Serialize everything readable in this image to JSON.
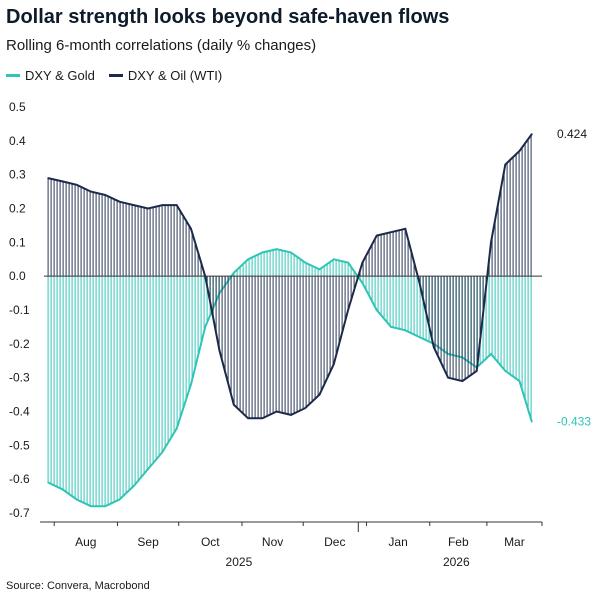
{
  "title": "Dollar strength looks beyond safe-haven flows",
  "subtitle": "Rolling 6-month correlations (daily % changes)",
  "source": "Source: Convera, Macrobond",
  "colors": {
    "gold": "#2ec4b6",
    "oil": "#1b2a49",
    "axis": "#333333"
  },
  "chart_data": {
    "type": "area",
    "title": "Dollar strength looks beyond safe-haven flows",
    "subtitle": "Rolling 6-month correlations (daily % changes)",
    "ylim": [
      -0.7,
      0.5
    ],
    "yticks": [
      "0.5",
      "0.4",
      "0.3",
      "0.2",
      "0.1",
      "0.0",
      "-0.1",
      "-0.2",
      "-0.3",
      "-0.4",
      "-0.5",
      "-0.6",
      "-0.7"
    ],
    "ytick_values": [
      0.5,
      0.4,
      0.3,
      0.2,
      0.1,
      0.0,
      -0.1,
      -0.2,
      -0.3,
      -0.4,
      -0.5,
      -0.6,
      -0.7
    ],
    "x_months": [
      "Aug",
      "Sep",
      "Oct",
      "Nov",
      "Dec",
      "Jan",
      "Feb",
      "Mar"
    ],
    "x_years": [
      "2025",
      "2026"
    ],
    "legend_position": "top-left",
    "grid": false,
    "series": [
      {
        "name": "DXY & Gold",
        "color": "#2ec4b6",
        "end_label": "-0.433",
        "x": [
          "2025-07-29",
          "2025-08-05",
          "2025-08-12",
          "2025-08-19",
          "2025-08-26",
          "2025-09-02",
          "2025-09-09",
          "2025-09-16",
          "2025-09-23",
          "2025-09-30",
          "2025-10-07",
          "2025-10-14",
          "2025-10-21",
          "2025-10-28",
          "2025-11-04",
          "2025-11-11",
          "2025-11-18",
          "2025-11-25",
          "2025-12-02",
          "2025-12-09",
          "2025-12-16",
          "2025-12-23",
          "2025-12-30",
          "2026-01-06",
          "2026-01-13",
          "2026-01-20",
          "2026-01-27",
          "2026-02-03",
          "2026-02-10",
          "2026-02-17",
          "2026-02-24",
          "2026-03-03",
          "2026-03-10",
          "2026-03-17",
          "2026-03-23"
        ],
        "values": [
          -0.61,
          -0.63,
          -0.66,
          -0.68,
          -0.68,
          -0.66,
          -0.62,
          -0.57,
          -0.52,
          -0.45,
          -0.32,
          -0.15,
          -0.05,
          0.01,
          0.05,
          0.07,
          0.08,
          0.07,
          0.04,
          0.02,
          0.05,
          0.04,
          -0.02,
          -0.1,
          -0.15,
          -0.16,
          -0.18,
          -0.2,
          -0.23,
          -0.24,
          -0.27,
          -0.23,
          -0.28,
          -0.31,
          -0.43
        ]
      },
      {
        "name": "DXY & Oil (WTI)",
        "color": "#1b2a49",
        "end_label": "0.424",
        "x": [
          "2025-07-29",
          "2025-08-05",
          "2025-08-12",
          "2025-08-19",
          "2025-08-26",
          "2025-09-02",
          "2025-09-09",
          "2025-09-16",
          "2025-09-23",
          "2025-09-30",
          "2025-10-07",
          "2025-10-14",
          "2025-10-21",
          "2025-10-28",
          "2025-11-04",
          "2025-11-11",
          "2025-11-18",
          "2025-11-25",
          "2025-12-02",
          "2025-12-09",
          "2025-12-16",
          "2025-12-23",
          "2025-12-30",
          "2026-01-06",
          "2026-01-13",
          "2026-01-20",
          "2026-01-27",
          "2026-02-03",
          "2026-02-10",
          "2026-02-17",
          "2026-02-24",
          "2026-03-03",
          "2026-03-10",
          "2026-03-17",
          "2026-03-23"
        ],
        "values": [
          0.29,
          0.28,
          0.27,
          0.25,
          0.24,
          0.22,
          0.21,
          0.2,
          0.21,
          0.21,
          0.14,
          0.0,
          -0.22,
          -0.38,
          -0.42,
          -0.42,
          -0.4,
          -0.41,
          -0.39,
          -0.35,
          -0.26,
          -0.1,
          0.04,
          0.12,
          0.13,
          0.14,
          -0.02,
          -0.21,
          -0.3,
          -0.31,
          -0.28,
          0.1,
          0.33,
          0.37,
          0.42
        ]
      }
    ]
  }
}
